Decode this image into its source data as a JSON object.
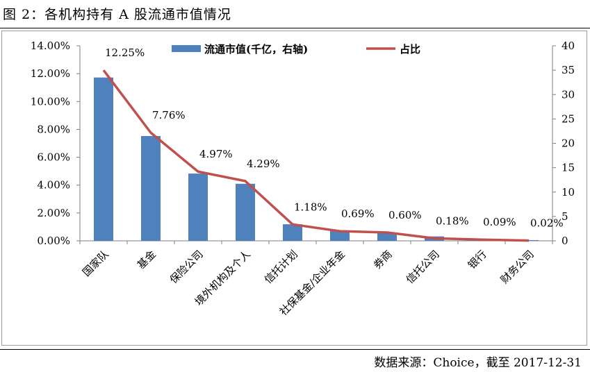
{
  "figure_title": "图 2：各机构持有 A 股流通市值情况",
  "source": "数据来源：Choice，截至 2017-12-31",
  "colors": {
    "bar": "#4f81bd",
    "line": "#c0504d",
    "axis": "#7f7f7f"
  },
  "chart_data": {
    "type": "bar",
    "title": "",
    "xlabel": "",
    "ylabel": "",
    "legend_position": "top",
    "categories": [
      "国家队",
      "基金",
      "保险公司",
      "境外机构及个人",
      "信托计划",
      "社保基金/企业年金",
      "券商",
      "信托公司",
      "银行",
      "财务公司"
    ],
    "series": [
      {
        "name": "流通市值(千亿，右轴)",
        "type": "bar",
        "axis": "right",
        "values": [
          33.5,
          21.5,
          13.8,
          11.7,
          3.4,
          2.0,
          1.6,
          0.9,
          0.3,
          0.15
        ]
      },
      {
        "name": "占比",
        "type": "line",
        "axis": "left",
        "values": [
          12.25,
          7.76,
          4.97,
          4.29,
          1.18,
          0.69,
          0.6,
          0.18,
          0.09,
          0.02
        ],
        "labels": [
          "12.25%",
          "7.76%",
          "4.97%",
          "4.29%",
          "1.18%",
          "0.69%",
          "0.60%",
          "0.18%",
          "0.09%",
          "0.02%"
        ]
      }
    ],
    "y_left": {
      "min": 0,
      "max": 14,
      "step": 2,
      "ticks": [
        "0.00%",
        "2.00%",
        "4.00%",
        "6.00%",
        "8.00%",
        "10.00%",
        "12.00%",
        "14.00%"
      ]
    },
    "y_right": {
      "min": 0,
      "max": 40,
      "step": 5,
      "ticks": [
        "0",
        "5",
        "10",
        "15",
        "20",
        "25",
        "30",
        "35",
        "40"
      ]
    },
    "grid": false
  }
}
